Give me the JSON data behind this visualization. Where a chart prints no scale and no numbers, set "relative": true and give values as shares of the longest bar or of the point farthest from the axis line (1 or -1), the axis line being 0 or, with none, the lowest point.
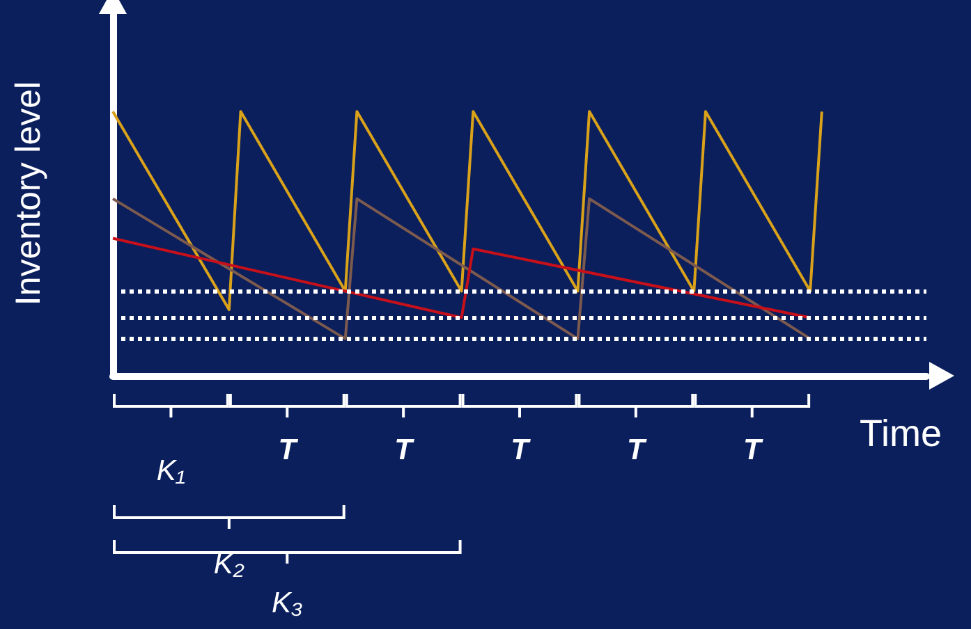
{
  "chart_data": {
    "type": "line",
    "relative": true,
    "xlabel": "Time",
    "ylabel": "Inventory level",
    "marker": "none",
    "line_style": "solid",
    "categories": [
      null,
      null,
      null,
      null,
      null,
      null,
      null,
      null,
      null,
      null,
      null,
      null,
      null,
      null,
      null,
      null,
      null,
      null,
      null,
      null,
      null,
      null,
      null,
      null,
      null,
      null,
      null,
      null,
      null,
      null,
      null,
      null,
      null,
      null,
      null,
      null,
      null,
      null,
      null,
      null,
      null,
      null,
      null,
      null,
      null,
      null,
      null,
      null,
      null,
      null,
      null,
      null,
      null,
      null,
      null,
      null,
      null,
      null,
      null,
      null,
      null,
      null,
      null,
      null,
      null,
      null,
      null,
      null,
      null,
      null,
      null
    ],
    "series": [
      {
        "color": "#d9a21a",
        "values": [
          1,
          null,
          null,
          null,
          null,
          null,
          null,
          null,
          null,
          null,
          0.25,
          1,
          null,
          null,
          null,
          null,
          null,
          null,
          null,
          null,
          0.32,
          1,
          null,
          null,
          null,
          null,
          null,
          null,
          null,
          null,
          0.32,
          1,
          null,
          null,
          null,
          null,
          null,
          null,
          null,
          null,
          0.32,
          1,
          null,
          null,
          null,
          null,
          null,
          null,
          null,
          null,
          0.32,
          1,
          null,
          null,
          null,
          null,
          null,
          null,
          null,
          null,
          0.32,
          1,
          null,
          null,
          null,
          null,
          null,
          null,
          null,
          null,
          null
        ]
      },
      {
        "color": "#7d5a4e",
        "values": [
          0.67,
          null,
          null,
          null,
          null,
          null,
          null,
          null,
          null,
          null,
          null,
          null,
          null,
          null,
          null,
          null,
          null,
          null,
          null,
          null,
          0.14,
          0.67,
          null,
          null,
          null,
          null,
          null,
          null,
          null,
          null,
          null,
          null,
          null,
          null,
          null,
          null,
          null,
          null,
          null,
          null,
          0.14,
          0.67,
          null,
          null,
          null,
          null,
          null,
          null,
          null,
          null,
          null,
          null,
          null,
          null,
          null,
          null,
          null,
          null,
          null,
          null,
          0.14,
          null,
          null,
          null,
          null,
          null,
          null,
          null,
          null,
          null,
          null
        ]
      },
      {
        "color": "#c8101a",
        "values": [
          0.52,
          null,
          null,
          null,
          null,
          null,
          null,
          null,
          null,
          null,
          null,
          null,
          null,
          null,
          null,
          null,
          null,
          null,
          null,
          null,
          null,
          null,
          null,
          null,
          null,
          null,
          null,
          null,
          null,
          null,
          0.22,
          0.48,
          null,
          null,
          null,
          null,
          null,
          null,
          null,
          null,
          null,
          null,
          null,
          null,
          null,
          null,
          null,
          null,
          null,
          null,
          null,
          null,
          null,
          null,
          null,
          null,
          null,
          null,
          null,
          null,
          0.22,
          null,
          null,
          null,
          null,
          null,
          null,
          null,
          null,
          null,
          null
        ]
      }
    ],
    "ref_lines": [
      {
        "axis": "y",
        "value": 0.32,
        "color": "#ffffff",
        "line_style": "dotted"
      },
      {
        "axis": "y",
        "value": 0.22,
        "color": "#ffffff",
        "line_style": "dotted"
      },
      {
        "axis": "y",
        "value": 0.14,
        "color": "#ffffff",
        "line_style": "dotted"
      }
    ],
    "annotations": [
      "K₁",
      "T",
      "T",
      "T",
      "T",
      "T",
      "K₂",
      "K₃"
    ]
  }
}
